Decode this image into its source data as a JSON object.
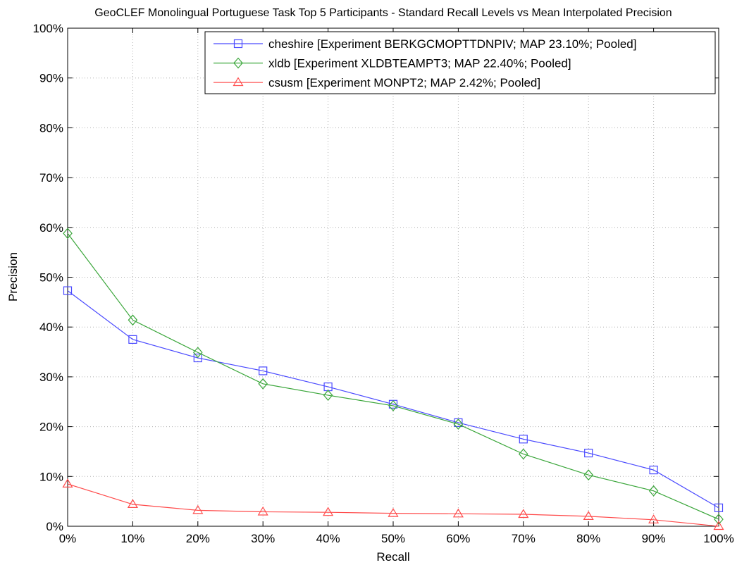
{
  "chart_data": {
    "type": "line",
    "title": "GeoCLEF Monolingual Portuguese Task Top 5 Participants - Standard Recall Levels vs Mean Interpolated Precision",
    "xlabel": "Recall",
    "ylabel": "Precision",
    "x": [
      0,
      10,
      20,
      30,
      40,
      50,
      60,
      70,
      80,
      90,
      100
    ],
    "x_tick_labels": [
      "0%",
      "10%",
      "20%",
      "30%",
      "40%",
      "50%",
      "60%",
      "70%",
      "80%",
      "90%",
      "100%"
    ],
    "y_ticks": [
      0,
      10,
      20,
      30,
      40,
      50,
      60,
      70,
      80,
      90,
      100
    ],
    "y_tick_labels": [
      "0%",
      "10%",
      "20%",
      "30%",
      "40%",
      "50%",
      "60%",
      "70%",
      "80%",
      "90%",
      "100%"
    ],
    "xlim": [
      0,
      100
    ],
    "ylim": [
      0,
      100
    ],
    "grid": true,
    "legend_position": "top-right",
    "series": [
      {
        "name": "cheshire [Experiment BERKGCMOPTTDNPIV; MAP 23.10%; Pooled]",
        "color": "#4a4aff",
        "marker": "square",
        "values": [
          47.3,
          37.5,
          33.8,
          31.2,
          28.0,
          24.5,
          20.8,
          17.5,
          14.7,
          11.3,
          3.7
        ]
      },
      {
        "name": "xldb [Experiment XLDBTEAMPT3; MAP 22.40%; Pooled]",
        "color": "#3aa63a",
        "marker": "diamond",
        "values": [
          58.8,
          41.4,
          34.9,
          28.6,
          26.3,
          24.2,
          20.5,
          14.5,
          10.3,
          7.1,
          1.4
        ]
      },
      {
        "name": "csusm [Experiment MONPT2; MAP 2.42%; Pooled]",
        "color": "#ff4a4a",
        "marker": "triangle",
        "values": [
          8.5,
          4.4,
          3.2,
          2.9,
          2.8,
          2.6,
          2.5,
          2.4,
          2.0,
          1.3,
          0.0
        ]
      }
    ]
  }
}
